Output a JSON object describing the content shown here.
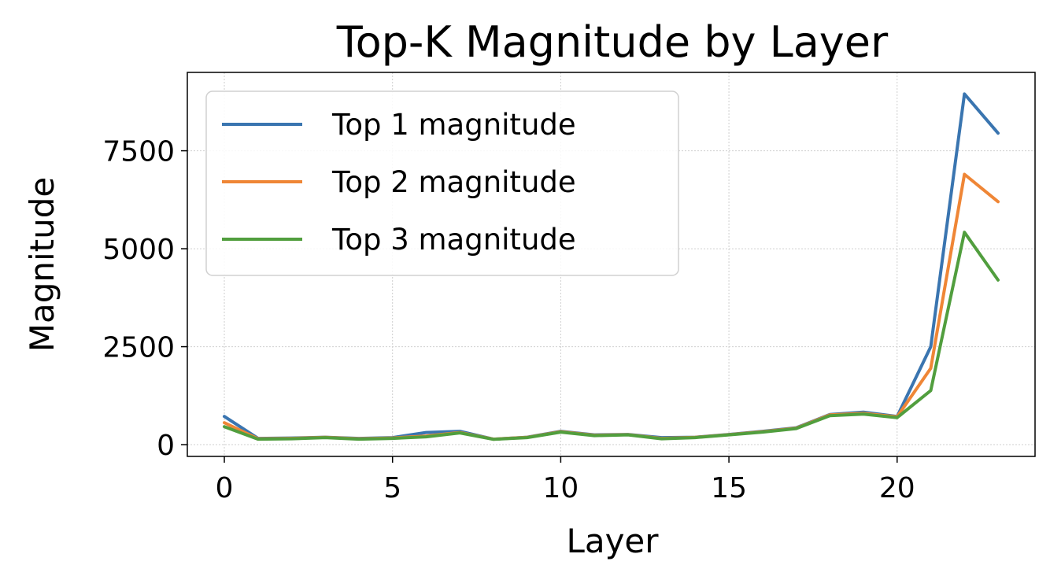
{
  "chart_data": {
    "type": "line",
    "title": "Top-K Magnitude by Layer",
    "xlabel": "Layer",
    "ylabel": "Magnitude",
    "xlim": [
      -1.1,
      24.1
    ],
    "ylim": [
      -300,
      9500
    ],
    "xticks": [
      0,
      5,
      10,
      15,
      20
    ],
    "yticks": [
      0,
      2500,
      5000,
      7500
    ],
    "grid": true,
    "legend_position": "top-left",
    "x": [
      0,
      1,
      2,
      3,
      4,
      5,
      6,
      7,
      8,
      9,
      10,
      11,
      12,
      13,
      14,
      15,
      16,
      17,
      18,
      19,
      20,
      21,
      22,
      23
    ],
    "series": [
      {
        "name": "Top 1 magnitude",
        "color": "#3a75b0",
        "values": [
          720,
          160,
          170,
          190,
          160,
          180,
          310,
          340,
          140,
          190,
          340,
          250,
          260,
          180,
          190,
          260,
          340,
          430,
          770,
          830,
          720,
          2500,
          8950,
          7950
        ]
      },
      {
        "name": "Top 2 magnitude",
        "color": "#ef8636",
        "values": [
          560,
          150,
          160,
          185,
          150,
          170,
          220,
          310,
          140,
          185,
          330,
          240,
          255,
          160,
          185,
          255,
          330,
          420,
          760,
          800,
          710,
          1950,
          6900,
          6200
        ]
      },
      {
        "name": "Top 3 magnitude",
        "color": "#519e3e",
        "values": [
          460,
          140,
          150,
          180,
          140,
          160,
          200,
          300,
          135,
          180,
          320,
          230,
          250,
          150,
          180,
          250,
          320,
          410,
          740,
          780,
          690,
          1380,
          5420,
          4200
        ]
      }
    ]
  }
}
